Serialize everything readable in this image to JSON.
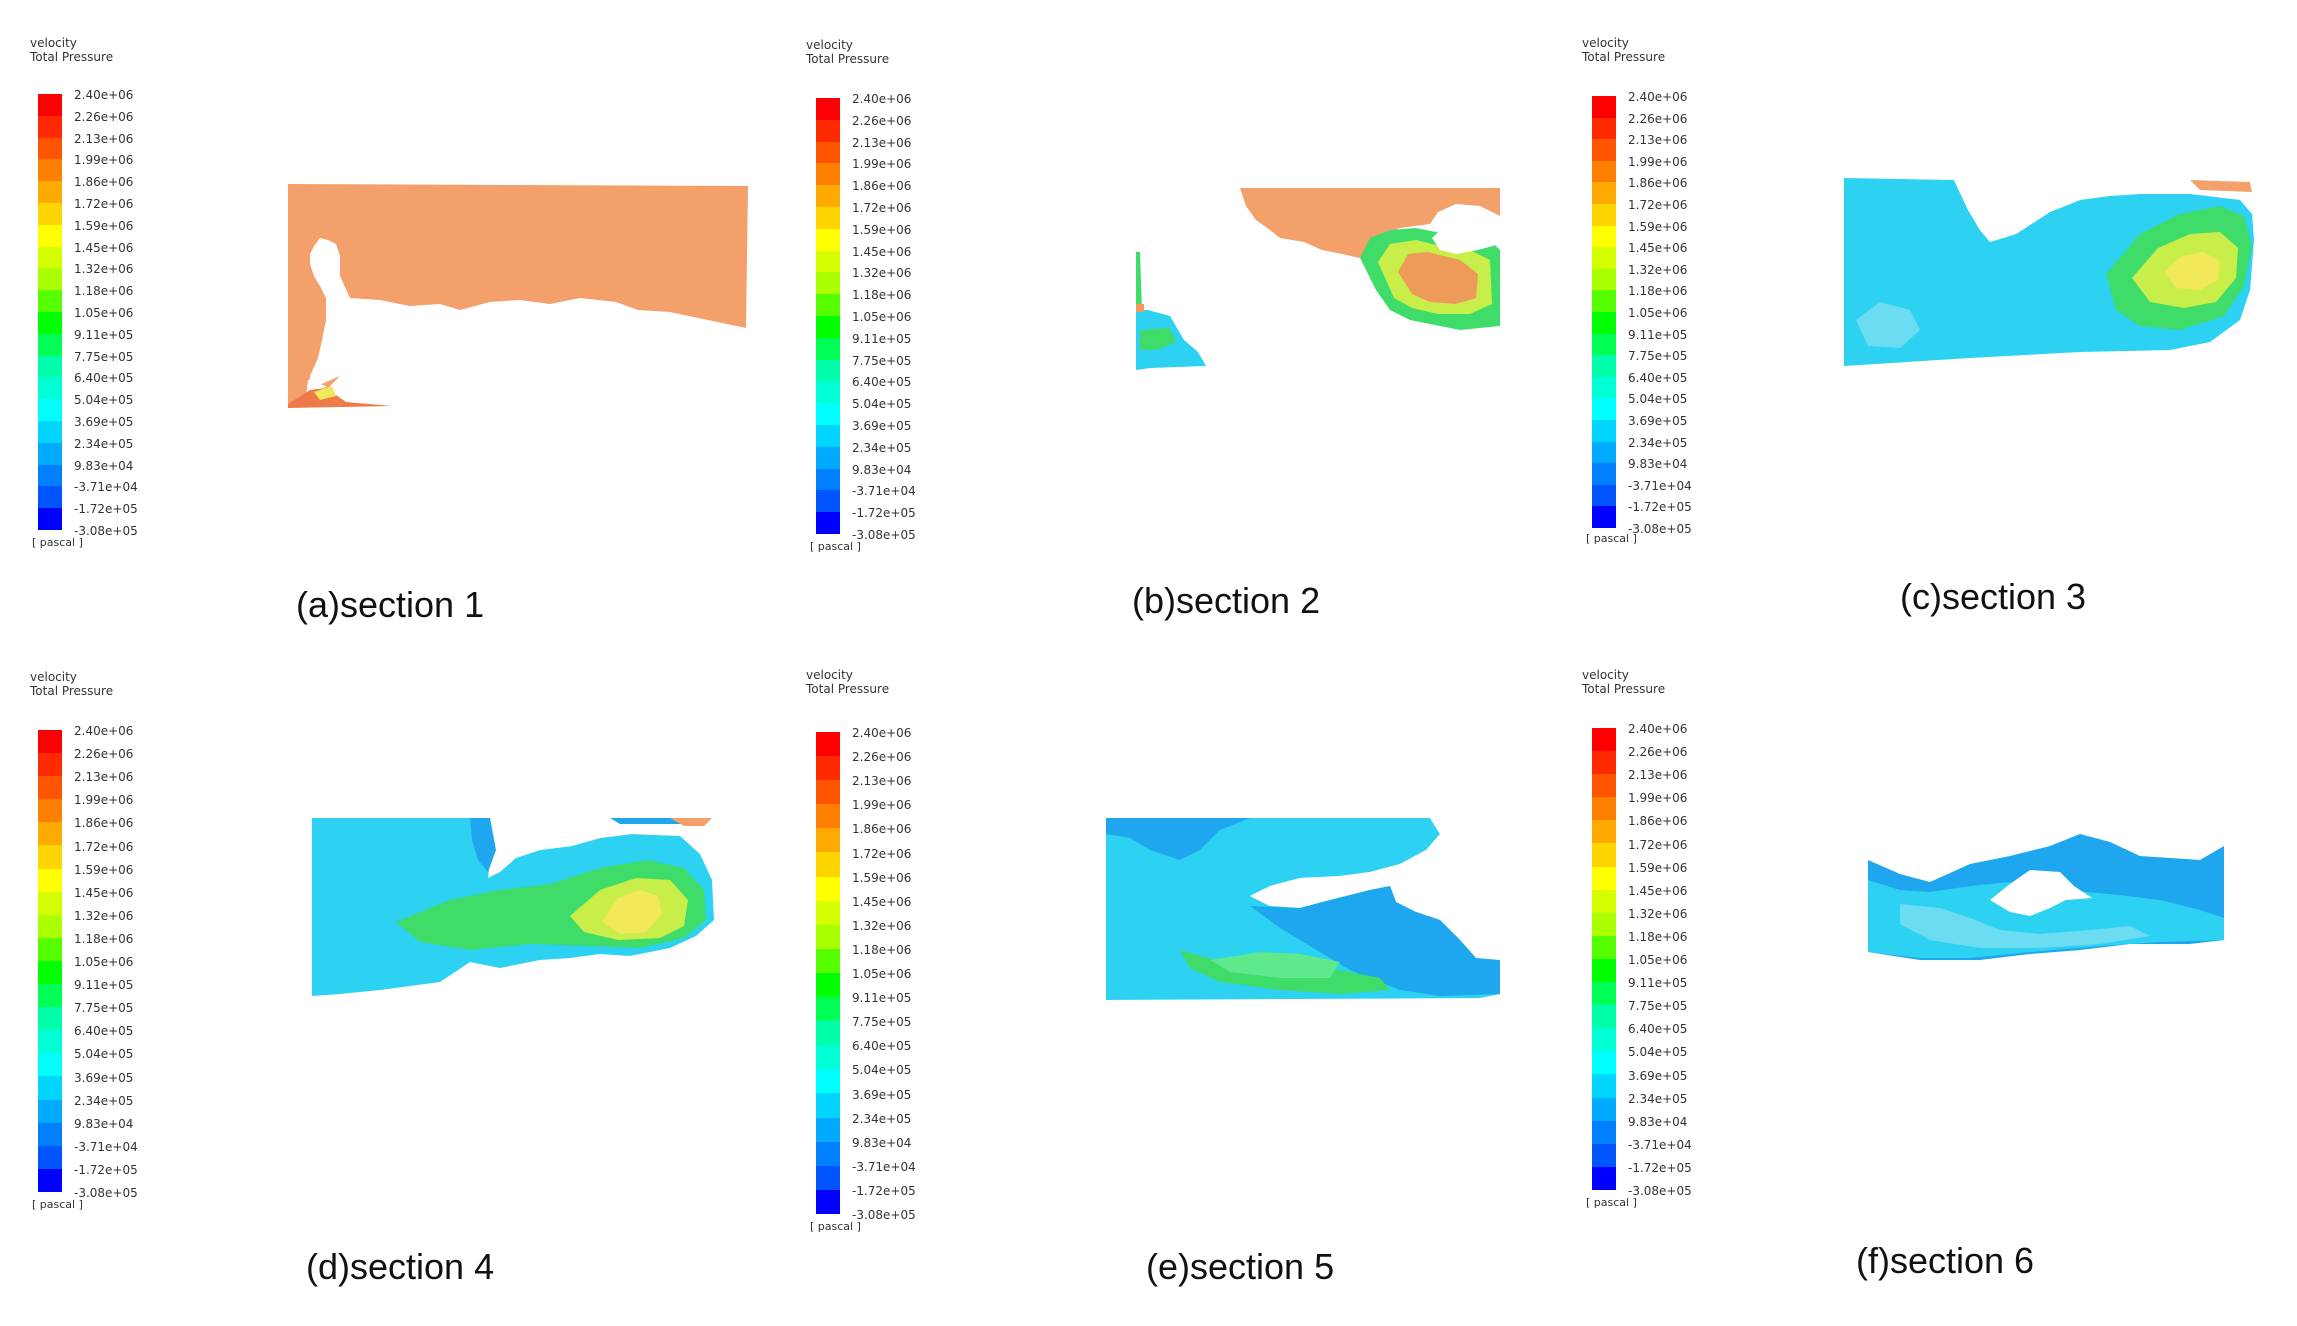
{
  "legend": {
    "line1": "velocity",
    "line2": "Total Pressure",
    "unit": "[ pascal ]",
    "ticks": [
      "2.40e+06",
      "2.26e+06",
      "2.13e+06",
      "1.99e+06",
      "1.86e+06",
      "1.72e+06",
      "1.59e+06",
      "1.45e+06",
      "1.32e+06",
      "1.18e+06",
      "1.05e+06",
      "9.11e+05",
      "7.75e+05",
      "6.40e+05",
      "5.04e+05",
      "3.69e+05",
      "2.34e+05",
      "9.83e+04",
      "-3.71e+04",
      "-1.72e+05",
      "-3.08e+05"
    ],
    "colors": [
      "#ff0000",
      "#ff2a00",
      "#ff5500",
      "#ff8000",
      "#ffaa00",
      "#ffd500",
      "#ffff00",
      "#d5ff00",
      "#aaff00",
      "#55ff00",
      "#00ff00",
      "#00ff55",
      "#00ffaa",
      "#00ffd5",
      "#00ffff",
      "#00d5ff",
      "#00aaff",
      "#0080ff",
      "#0055ff",
      "#0000ff"
    ]
  },
  "panels": [
    {
      "id": "a",
      "caption": "(a)section 1"
    },
    {
      "id": "b",
      "caption": "(b)section 2"
    },
    {
      "id": "c",
      "caption": "(c)section 3"
    },
    {
      "id": "d",
      "caption": "(d)section 4"
    },
    {
      "id": "e",
      "caption": "(e)section 5"
    },
    {
      "id": "f",
      "caption": "(f)section 6"
    }
  ],
  "field_colors": {
    "high_orange": "#f4a06a",
    "mid_cyan": "#2dd2f2",
    "light_blue": "#1ea6ee",
    "green": "#3fdc6a",
    "yellow_green": "#c8ee4a",
    "yellow": "#f2e85a",
    "red_orange": "#ee7a4a"
  }
}
